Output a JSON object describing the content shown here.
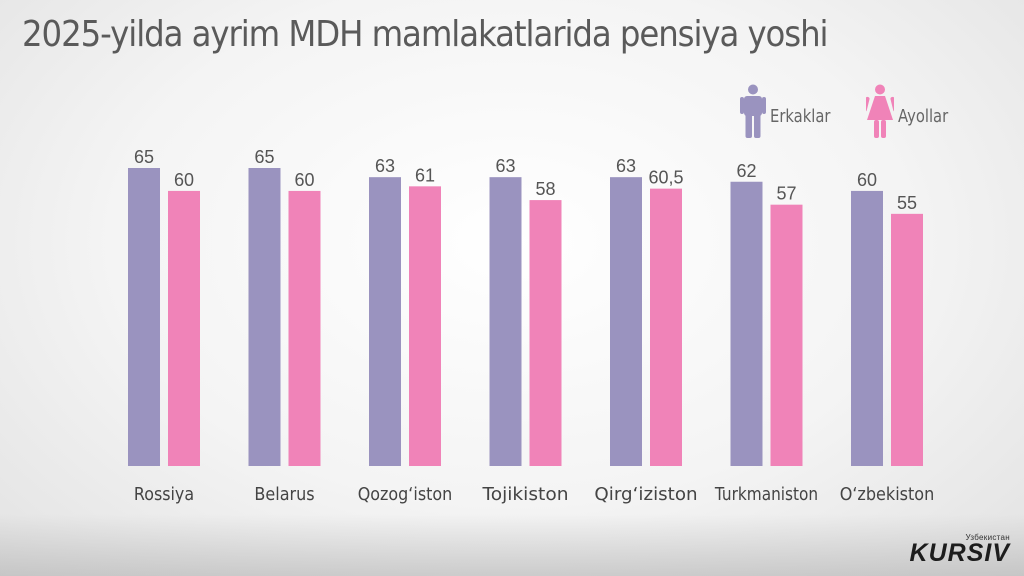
{
  "colors": {
    "men": "#9a93bf",
    "women": "#f083b8",
    "title": "#5a5a5a"
  },
  "legend": [
    {
      "label": "Erkaklar",
      "icon": "man-icon"
    },
    {
      "label": "Ayollar",
      "icon": "woman-icon"
    }
  ],
  "logo": {
    "sub": "Узбекистан",
    "main": "KURSIV"
  },
  "chart_data": {
    "type": "bar",
    "title": "2025-yilda ayrim MDH mamlakatlarida pensiya yoshi",
    "xlabel": "",
    "ylabel": "",
    "ylim": [
      0,
      65
    ],
    "grid": false,
    "legend_position": "top-right",
    "categories": [
      "Rossiya",
      "Belarus",
      "Qozog‘iston",
      "Tojikiston",
      "Qirg‘iziston",
      "Turkmaniston",
      "O‘zbekiston"
    ],
    "series": [
      {
        "name": "Erkaklar",
        "values": [
          65,
          65,
          63,
          63,
          63,
          62,
          60
        ],
        "labels": [
          "65",
          "65",
          "63",
          "63",
          "63",
          "62",
          "60"
        ]
      },
      {
        "name": "Ayollar",
        "values": [
          60,
          60,
          61,
          58,
          60.5,
          57,
          55
        ],
        "labels": [
          "60",
          "60",
          "61",
          "58",
          "60,5",
          "57",
          "55"
        ]
      }
    ]
  }
}
